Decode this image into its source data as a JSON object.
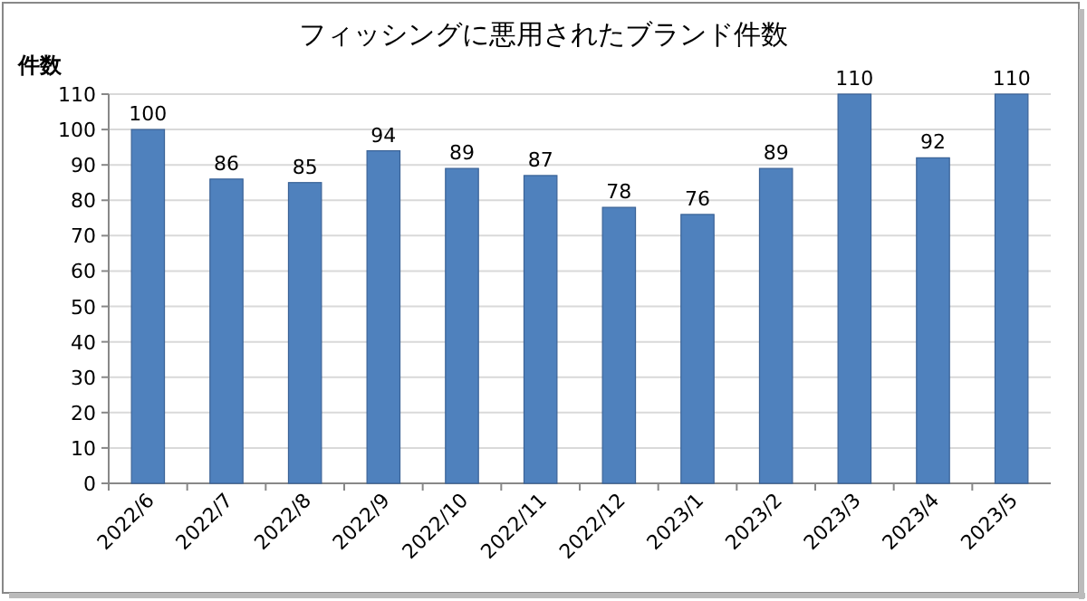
{
  "chart_data": {
    "type": "bar",
    "title": "フィッシングに悪用されたブランド件数",
    "ylabel": "件数",
    "categories": [
      "2022/6",
      "2022/7",
      "2022/8",
      "2022/9",
      "2022/10",
      "2022/11",
      "2022/12",
      "2023/1",
      "2023/2",
      "2023/3",
      "2023/4",
      "2023/5"
    ],
    "values": [
      100,
      86,
      85,
      94,
      89,
      87,
      78,
      76,
      89,
      110,
      92,
      110
    ],
    "color": "#4f81bd",
    "ylim": [
      0,
      110
    ],
    "yticks": [
      0,
      10,
      20,
      30,
      40,
      50,
      60,
      70,
      80,
      90,
      100,
      110
    ],
    "grid": "y",
    "data_labels": true
  }
}
